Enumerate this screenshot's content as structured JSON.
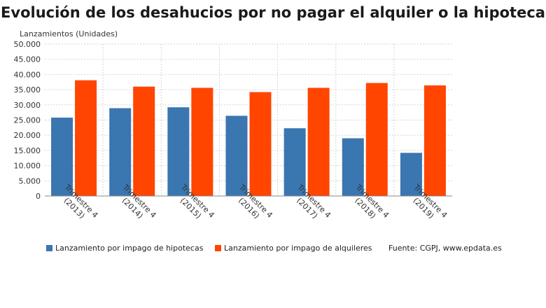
{
  "chart_data": {
    "type": "bar",
    "title": "Evolución de los desahucios por no pagar el alquiler o la hipoteca",
    "ylabel": "Lanzamientos (Unidades)",
    "xlabel": "",
    "categories": [
      [
        "Trimestre 4",
        "(2013)"
      ],
      [
        "Trimestre 4",
        "(2014)"
      ],
      [
        "Trimestre 4",
        "(2015)"
      ],
      [
        "Trimestre 4",
        "(2016)"
      ],
      [
        "Trimestre 4",
        "(2017)"
      ],
      [
        "Trimestre 4",
        "(2018)"
      ],
      [
        "Trimestre 4",
        "(2019)"
      ]
    ],
    "series": [
      {
        "name": "Lanzamiento por impago de hipotecas",
        "color": "#3a76b0",
        "values": [
          25800,
          28900,
          29200,
          26400,
          22300,
          19000,
          14200
        ]
      },
      {
        "name": "Lanzamiento por impago de alquileres",
        "color": "#ff4500",
        "values": [
          38100,
          36000,
          35600,
          34200,
          35600,
          37200,
          36400
        ]
      }
    ],
    "ylim": [
      0,
      50000
    ],
    "yticks": [
      "0",
      "5.000",
      "10.000",
      "15.000",
      "20.000",
      "25.000",
      "30.000",
      "35.000",
      "40.000",
      "45.000",
      "50.000"
    ],
    "grid": true,
    "legend_position": "bottom",
    "source": "Fuente: CGPJ, www.epdata.es"
  }
}
